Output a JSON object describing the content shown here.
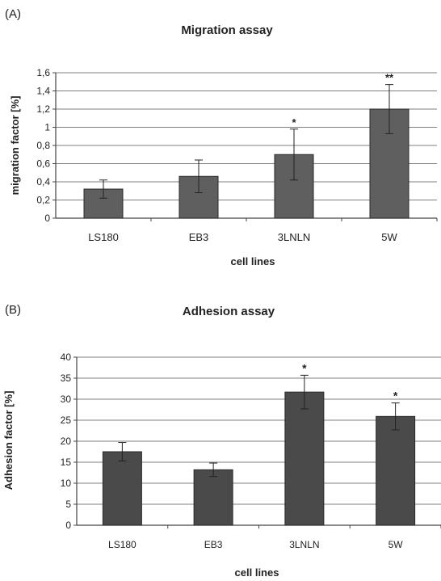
{
  "panels": [
    {
      "panel_label": "(A)",
      "chart_data": {
        "type": "bar",
        "title": "Migration assay",
        "xlabel": "cell lines",
        "ylabel": "migration factor [%]",
        "categories": [
          "LS180",
          "EB3",
          "3LNLN",
          "5W"
        ],
        "values": [
          0.32,
          0.46,
          0.7,
          1.2
        ],
        "error_bars": [
          0.1,
          0.18,
          0.28,
          0.27
        ],
        "significance": [
          "",
          "",
          "*",
          "**"
        ],
        "ylim": [
          0,
          1.6
        ],
        "yticks": [
          "0",
          "0,2",
          "0,4",
          "0,6",
          "0,8",
          "1",
          "1,2",
          "1,4",
          "1,6"
        ],
        "grid": true,
        "bar_color": "#5f5f5f"
      }
    },
    {
      "panel_label": "(B)",
      "chart_data": {
        "type": "bar",
        "title": "Adhesion assay",
        "xlabel": "cell lines",
        "ylabel": "Adhesion factor [%]",
        "categories": [
          "LS180",
          "EB3",
          "3LNLN",
          "5W"
        ],
        "values": [
          17.5,
          13.2,
          31.7,
          25.9
        ],
        "error_bars": [
          2.2,
          1.6,
          4.0,
          3.2
        ],
        "significance": [
          "",
          "",
          "*",
          "*"
        ],
        "ylim": [
          0,
          40
        ],
        "yticks": [
          "0",
          "5",
          "10",
          "15",
          "20",
          "25",
          "30",
          "35",
          "40"
        ],
        "grid": true,
        "bar_color": "#4a4a4a"
      }
    }
  ]
}
